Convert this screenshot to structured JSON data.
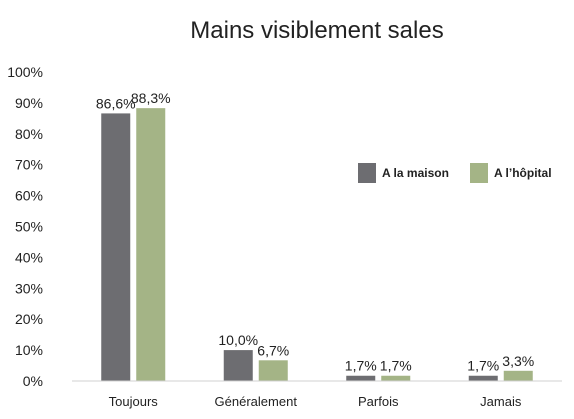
{
  "chart_data": {
    "type": "bar",
    "title": "Mains visiblement sales",
    "categories": [
      "Toujours",
      "Généralement",
      "Parfois",
      "Jamais"
    ],
    "series": [
      {
        "name": "A la maison",
        "color": "#6d6d71",
        "values": [
          86.6,
          10.0,
          1.7,
          1.7
        ],
        "labels": [
          "86,6%",
          "10,0%",
          "1,7%",
          "1,7%"
        ]
      },
      {
        "name": "A l’hôpital",
        "color": "#a4b486",
        "values": [
          88.3,
          6.7,
          1.7,
          3.3
        ],
        "labels": [
          "88,3%",
          "6,7%",
          "1,7%",
          "3,3%"
        ]
      }
    ],
    "ylim": [
      0,
      100
    ],
    "yticks": [
      "0%",
      "10%",
      "20%",
      "30%",
      "40%",
      "50%",
      "60%",
      "70%",
      "80%",
      "90%",
      "100%"
    ],
    "grid": false,
    "legend_position": "right"
  }
}
